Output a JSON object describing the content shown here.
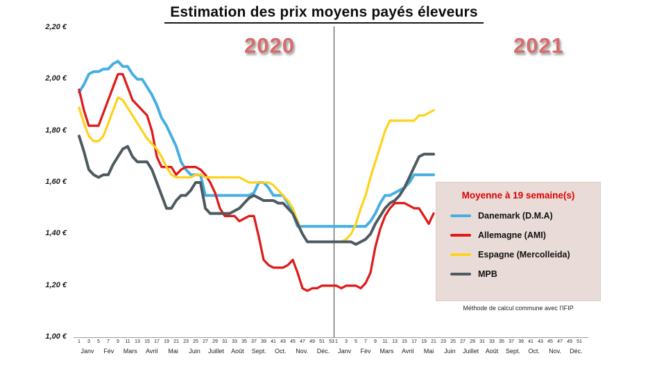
{
  "legend": {
    "title": "Moyenne à  19 semaine(s)"
  },
  "notes": {
    "method": "Méthode de calcul commune avec l'IFIP"
  },
  "chart_data": {
    "type": "line",
    "title": "Estimation des prix moyens payés éleveurs",
    "ylim": [
      1.0,
      2.2
    ],
    "grid": false,
    "legend_position": "right-middle",
    "years": [
      {
        "label": "2020",
        "weeks": 53
      },
      {
        "label": "2021",
        "weeks": 52
      }
    ],
    "month_labels": [
      "Janv",
      "Fév",
      "Mars",
      "Avril",
      "Mai",
      "Juin",
      "Juillet",
      "Août",
      "Sept.",
      "Oct.",
      "Nov.",
      "Déc."
    ],
    "x_tick_note": "week numbers, odd weeks labeled per year",
    "y_ticks": [
      {
        "value": 2.2,
        "label": "2,20 €"
      },
      {
        "value": 2.0,
        "label": "2,00 €"
      },
      {
        "value": 1.8,
        "label": "1,80 €"
      },
      {
        "value": 1.6,
        "label": "1,60 €"
      },
      {
        "value": 1.4,
        "label": "1,40 €"
      },
      {
        "value": 1.2,
        "label": "1,20 €"
      },
      {
        "value": 1.0,
        "label": "1,00 €"
      }
    ],
    "series": [
      {
        "name": "Danemark (D.M.A)",
        "color": "#47aee3",
        "stroke_width": 4,
        "values": [
          1.95,
          1.98,
          2.02,
          2.03,
          2.03,
          2.04,
          2.04,
          2.06,
          2.07,
          2.05,
          2.05,
          2.02,
          2.0,
          2.0,
          1.97,
          1.94,
          1.9,
          1.85,
          1.82,
          1.78,
          1.74,
          1.68,
          1.65,
          1.63,
          1.63,
          1.63,
          1.55,
          1.55,
          1.55,
          1.55,
          1.55,
          1.55,
          1.55,
          1.55,
          1.55,
          1.55,
          1.56,
          1.6,
          1.6,
          1.58,
          1.55,
          1.55,
          1.55,
          1.52,
          1.48,
          1.43,
          1.43,
          1.43,
          1.43,
          1.43,
          1.43,
          1.43,
          1.43,
          1.43,
          1.43,
          1.43,
          1.43,
          1.43,
          1.43,
          1.43,
          1.45,
          1.48,
          1.52,
          1.55,
          1.55,
          1.56,
          1.57,
          1.58,
          1.6,
          1.63,
          1.63,
          1.63,
          1.63,
          1.63
        ]
      },
      {
        "name": "Allemagne (AMI)",
        "color": "#e01a1a",
        "stroke_width": 3.3,
        "values": [
          1.96,
          1.88,
          1.82,
          1.82,
          1.82,
          1.87,
          1.92,
          1.97,
          2.02,
          2.02,
          1.97,
          1.92,
          1.9,
          1.88,
          1.86,
          1.8,
          1.7,
          1.66,
          1.66,
          1.66,
          1.63,
          1.65,
          1.66,
          1.66,
          1.66,
          1.65,
          1.63,
          1.6,
          1.56,
          1.5,
          1.47,
          1.47,
          1.47,
          1.45,
          1.46,
          1.47,
          1.47,
          1.39,
          1.3,
          1.28,
          1.27,
          1.27,
          1.27,
          1.28,
          1.3,
          1.25,
          1.19,
          1.18,
          1.19,
          1.19,
          1.2,
          1.2,
          1.2,
          1.2,
          1.19,
          1.2,
          1.2,
          1.2,
          1.19,
          1.21,
          1.25,
          1.35,
          1.42,
          1.47,
          1.5,
          1.52,
          1.52,
          1.52,
          1.51,
          1.5,
          1.5,
          1.47,
          1.44,
          1.48
        ]
      },
      {
        "name": "Espagne (Mercolleida)",
        "color": "#ffd21f",
        "stroke_width": 3.3,
        "values": [
          1.89,
          1.83,
          1.78,
          1.76,
          1.76,
          1.78,
          1.83,
          1.88,
          1.93,
          1.92,
          1.89,
          1.86,
          1.83,
          1.8,
          1.77,
          1.75,
          1.73,
          1.7,
          1.66,
          1.63,
          1.62,
          1.62,
          1.62,
          1.62,
          1.63,
          1.63,
          1.62,
          1.62,
          1.62,
          1.62,
          1.62,
          1.62,
          1.62,
          1.62,
          1.61,
          1.6,
          1.6,
          1.6,
          1.6,
          1.6,
          1.59,
          1.57,
          1.55,
          1.53,
          1.5,
          1.45,
          1.4,
          1.37,
          1.37,
          1.37,
          1.37,
          1.37,
          1.37,
          1.37,
          1.37,
          1.38,
          1.4,
          1.44,
          1.5,
          1.55,
          1.62,
          1.68,
          1.74,
          1.8,
          1.84,
          1.84,
          1.84,
          1.84,
          1.84,
          1.84,
          1.86,
          1.86,
          1.87,
          1.88
        ]
      },
      {
        "name": "MPB",
        "color": "#4d5a5f",
        "stroke_width": 4,
        "values": [
          1.78,
          1.72,
          1.65,
          1.63,
          1.62,
          1.63,
          1.63,
          1.67,
          1.7,
          1.73,
          1.74,
          1.7,
          1.68,
          1.68,
          1.68,
          1.65,
          1.6,
          1.55,
          1.5,
          1.5,
          1.53,
          1.55,
          1.55,
          1.57,
          1.6,
          1.6,
          1.5,
          1.48,
          1.48,
          1.48,
          1.48,
          1.48,
          1.49,
          1.5,
          1.52,
          1.54,
          1.55,
          1.54,
          1.53,
          1.53,
          1.53,
          1.52,
          1.52,
          1.5,
          1.48,
          1.44,
          1.4,
          1.37,
          1.37,
          1.37,
          1.37,
          1.37,
          1.37,
          1.37,
          1.37,
          1.37,
          1.37,
          1.36,
          1.37,
          1.38,
          1.4,
          1.44,
          1.47,
          1.5,
          1.52,
          1.53,
          1.55,
          1.58,
          1.62,
          1.66,
          1.7,
          1.71,
          1.71,
          1.71
        ]
      }
    ]
  }
}
